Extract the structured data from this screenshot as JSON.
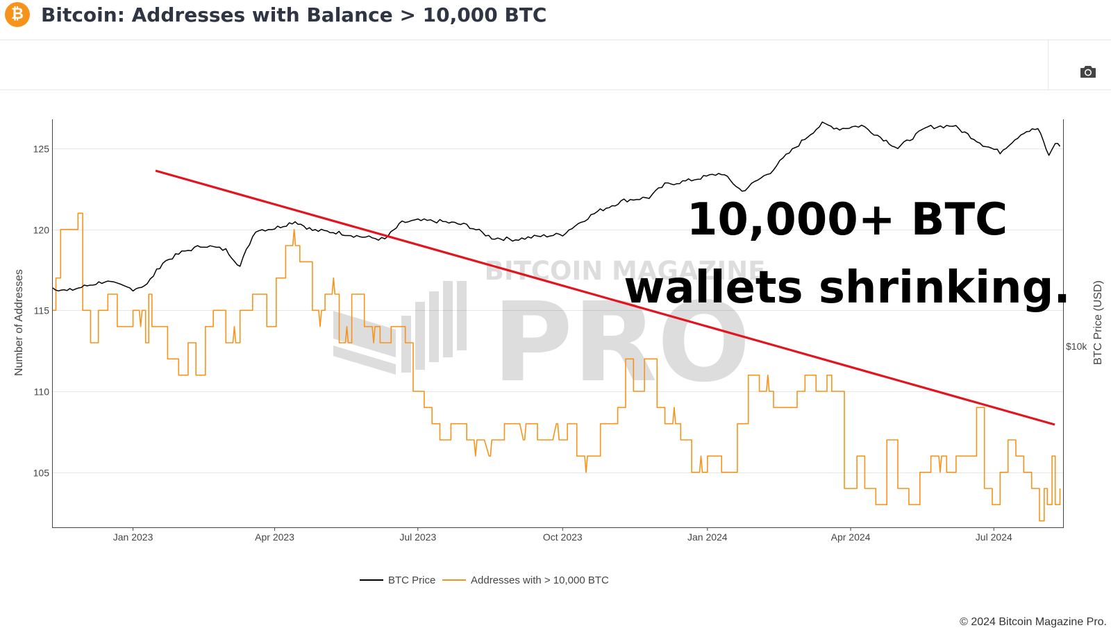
{
  "header": {
    "logo_glyph": "₿",
    "logo_icon": "bitcoin-logo-icon",
    "title": "Bitcoin: Addresses with Balance > 10,000 BTC"
  },
  "toolbar": {
    "camera_icon": "camera-icon"
  },
  "footer": {
    "copyright": "© 2024 Bitcoin Magazine Pro."
  },
  "watermark": {
    "top": "BITCOIN MAGAZINE",
    "main": "PRO"
  },
  "annotation": {
    "line1": "10,000+ BTC",
    "line2": "wallets shrinking."
  },
  "colors": {
    "price": "#000000",
    "addresses": "#f7931a",
    "trend": "#e3141e",
    "grid": "#e6e6e6"
  },
  "chart_data": {
    "type": "line",
    "title": "Bitcoin: Addresses with Balance > 10,000 BTC",
    "xlabel": "",
    "ylabel": "Number of Addresses",
    "y2label": "BTC Price (USD)",
    "xlim": [
      "2022-11-11",
      "2024-08-14"
    ],
    "ylim": [
      101.6,
      126.8
    ],
    "x_ticks": [
      {
        "date": "2023-01-01",
        "label": "Jan 2023"
      },
      {
        "date": "2023-04-01",
        "label": "Apr 2023"
      },
      {
        "date": "2023-07-01",
        "label": "Jul 2023"
      },
      {
        "date": "2023-10-01",
        "label": "Oct 2023"
      },
      {
        "date": "2024-01-01",
        "label": "Jan 2024"
      },
      {
        "date": "2024-04-01",
        "label": "Apr 2024"
      },
      {
        "date": "2024-07-01",
        "label": "Jul 2024"
      }
    ],
    "y_ticks": [
      105,
      110,
      115,
      120,
      125
    ],
    "y2_ticks": [
      {
        "value": 10000,
        "label": "$10k"
      }
    ],
    "grid": true,
    "legend_position": "bottom-center",
    "series": [
      {
        "name": "BTC Price",
        "axis": "right",
        "color": "#000000",
        "points": [
          [
            "2022-11-11",
            16800
          ],
          [
            "2022-11-20",
            16300
          ],
          [
            "2022-12-01",
            17000
          ],
          [
            "2022-12-14",
            17800
          ],
          [
            "2023-01-01",
            16600
          ],
          [
            "2023-01-10",
            17300
          ],
          [
            "2023-01-20",
            21000
          ],
          [
            "2023-02-01",
            23000
          ],
          [
            "2023-02-15",
            24500
          ],
          [
            "2023-03-01",
            23500
          ],
          [
            "2023-03-10",
            20300
          ],
          [
            "2023-03-20",
            28000
          ],
          [
            "2023-04-01",
            28500
          ],
          [
            "2023-04-14",
            30300
          ],
          [
            "2023-04-25",
            28000
          ],
          [
            "2023-05-10",
            27500
          ],
          [
            "2023-05-25",
            26500
          ],
          [
            "2023-06-10",
            25800
          ],
          [
            "2023-06-21",
            30000
          ],
          [
            "2023-07-01",
            30500
          ],
          [
            "2023-07-15",
            30300
          ],
          [
            "2023-08-01",
            29300
          ],
          [
            "2023-08-17",
            26200
          ],
          [
            "2023-09-01",
            25800
          ],
          [
            "2023-09-15",
            26500
          ],
          [
            "2023-10-01",
            27000
          ],
          [
            "2023-10-23",
            33000
          ],
          [
            "2023-11-09",
            36500
          ],
          [
            "2023-11-25",
            37500
          ],
          [
            "2023-12-05",
            42000
          ],
          [
            "2023-12-20",
            43500
          ],
          [
            "2024-01-10",
            46500
          ],
          [
            "2024-01-23",
            39500
          ],
          [
            "2024-02-10",
            47000
          ],
          [
            "2024-02-28",
            60000
          ],
          [
            "2024-03-14",
            72000
          ],
          [
            "2024-03-25",
            69000
          ],
          [
            "2024-04-08",
            71000
          ],
          [
            "2024-04-20",
            64000
          ],
          [
            "2024-05-01",
            58000
          ],
          [
            "2024-05-20",
            70000
          ],
          [
            "2024-06-05",
            71000
          ],
          [
            "2024-06-24",
            60000
          ],
          [
            "2024-07-05",
            56000
          ],
          [
            "2024-07-20",
            67000
          ],
          [
            "2024-07-29",
            69000
          ],
          [
            "2024-08-05",
            54000
          ],
          [
            "2024-08-09",
            61000
          ],
          [
            "2024-08-12",
            59000
          ]
        ]
      },
      {
        "name": "Addresses with > 10,000 BTC",
        "axis": "left",
        "color": "#f7931a",
        "points": [
          [
            "2022-11-11",
            115
          ],
          [
            "2022-11-13",
            117
          ],
          [
            "2022-11-16",
            120
          ],
          [
            "2022-11-27",
            121
          ],
          [
            "2022-11-30",
            115
          ],
          [
            "2022-12-05",
            113
          ],
          [
            "2022-12-10",
            115
          ],
          [
            "2022-12-16",
            116
          ],
          [
            "2022-12-22",
            114
          ],
          [
            "2023-01-01",
            115
          ],
          [
            "2023-01-09",
            113
          ],
          [
            "2023-01-11",
            116
          ],
          [
            "2023-01-13",
            114
          ],
          [
            "2023-01-23",
            112
          ],
          [
            "2023-01-30",
            111
          ],
          [
            "2023-02-05",
            113
          ],
          [
            "2023-02-10",
            111
          ],
          [
            "2023-02-16",
            114
          ],
          [
            "2023-02-21",
            115
          ],
          [
            "2023-03-01",
            113
          ],
          [
            "2023-03-10",
            115
          ],
          [
            "2023-03-18",
            116
          ],
          [
            "2023-03-27",
            114
          ],
          [
            "2023-04-02",
            117
          ],
          [
            "2023-04-08",
            119
          ],
          [
            "2023-04-17",
            118
          ],
          [
            "2023-04-25",
            115
          ],
          [
            "2023-05-03",
            116
          ],
          [
            "2023-05-12",
            113
          ],
          [
            "2023-05-20",
            116
          ],
          [
            "2023-05-28",
            114
          ],
          [
            "2023-06-07",
            113
          ],
          [
            "2023-06-14",
            114
          ],
          [
            "2023-06-23",
            113
          ],
          [
            "2023-06-28",
            110
          ],
          [
            "2023-07-05",
            109
          ],
          [
            "2023-07-10",
            108
          ],
          [
            "2023-07-15",
            107
          ],
          [
            "2023-07-22",
            108
          ],
          [
            "2023-08-01",
            107
          ],
          [
            "2023-08-20",
            107
          ],
          [
            "2023-08-25",
            108
          ],
          [
            "2023-09-10",
            108
          ],
          [
            "2023-09-15",
            107
          ],
          [
            "2023-10-01",
            107
          ],
          [
            "2023-10-04",
            108
          ],
          [
            "2023-10-10",
            106
          ],
          [
            "2023-10-25",
            108
          ],
          [
            "2023-11-05",
            109
          ],
          [
            "2023-11-10",
            112
          ],
          [
            "2023-11-15",
            110
          ],
          [
            "2023-11-22",
            112
          ],
          [
            "2023-11-30",
            109
          ],
          [
            "2023-12-05",
            108
          ],
          [
            "2023-12-15",
            107
          ],
          [
            "2023-12-22",
            105
          ],
          [
            "2024-01-01",
            106
          ],
          [
            "2024-01-10",
            105
          ],
          [
            "2024-01-17",
            105
          ],
          [
            "2024-01-20",
            108
          ],
          [
            "2024-01-27",
            111
          ],
          [
            "2024-02-03",
            110
          ],
          [
            "2024-02-12",
            109
          ],
          [
            "2024-02-20",
            109
          ],
          [
            "2024-02-27",
            110
          ],
          [
            "2024-03-03",
            111
          ],
          [
            "2024-03-10",
            110
          ],
          [
            "2024-03-17",
            111
          ],
          [
            "2024-03-20",
            110
          ],
          [
            "2024-03-28",
            104
          ],
          [
            "2024-04-05",
            106
          ],
          [
            "2024-04-10",
            104
          ],
          [
            "2024-04-17",
            103
          ],
          [
            "2024-04-24",
            107
          ],
          [
            "2024-05-01",
            104
          ],
          [
            "2024-05-08",
            103
          ],
          [
            "2024-05-15",
            105
          ],
          [
            "2024-05-22",
            106
          ],
          [
            "2024-06-01",
            105
          ],
          [
            "2024-06-07",
            106
          ],
          [
            "2024-06-13",
            106
          ],
          [
            "2024-06-20",
            109
          ],
          [
            "2024-06-25",
            104
          ],
          [
            "2024-06-30",
            103
          ],
          [
            "2024-07-05",
            105
          ],
          [
            "2024-07-10",
            107
          ],
          [
            "2024-07-15",
            106
          ],
          [
            "2024-07-20",
            105
          ],
          [
            "2024-07-25",
            104
          ],
          [
            "2024-07-30",
            102
          ],
          [
            "2024-08-02",
            104
          ],
          [
            "2024-08-04",
            103
          ],
          [
            "2024-08-07",
            106
          ],
          [
            "2024-08-09",
            103
          ],
          [
            "2024-08-12",
            104
          ]
        ]
      }
    ]
  }
}
